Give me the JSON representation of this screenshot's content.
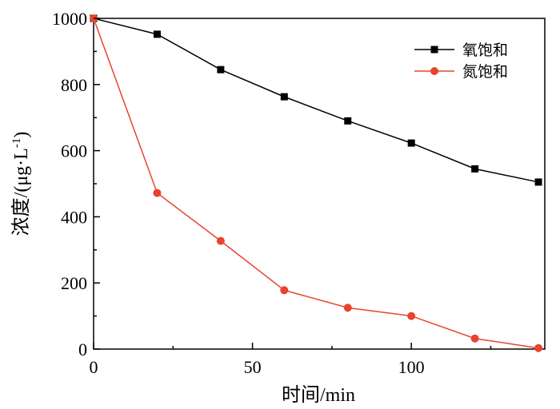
{
  "chart_data": {
    "type": "line",
    "xlabel": "时间/min",
    "ylabel_main": "浓度/(μg·L",
    "ylabel_sup": "-1",
    "ylabel_close": ")",
    "xlim": [
      0,
      142
    ],
    "ylim": [
      0,
      1000
    ],
    "xticks": [
      0,
      50,
      100
    ],
    "yticks": [
      0,
      200,
      400,
      600,
      800,
      1000
    ],
    "grid": false,
    "legend_position": "top-right",
    "series": [
      {
        "name": "氧饱和",
        "color": "#000000",
        "marker": "square",
        "x": [
          0,
          20,
          40,
          60,
          80,
          100,
          120,
          140
        ],
        "y": [
          1000,
          952,
          845,
          763,
          690,
          623,
          545,
          505
        ]
      },
      {
        "name": "氮饱和",
        "color": "#e8432f",
        "marker": "circle",
        "x": [
          0,
          20,
          40,
          60,
          80,
          100,
          120,
          140
        ],
        "y": [
          1000,
          472,
          327,
          178,
          125,
          100,
          32,
          3
        ]
      }
    ]
  }
}
